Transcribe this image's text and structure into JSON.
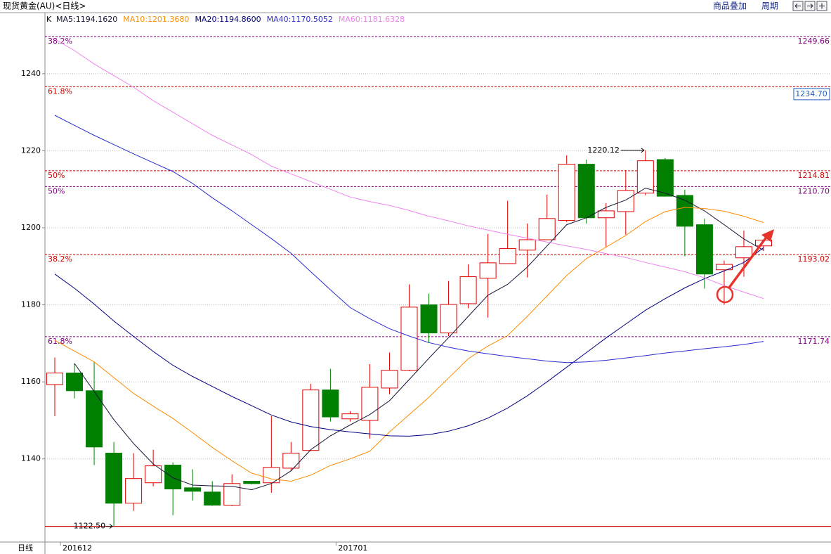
{
  "header": {
    "title": "现货黄金(AU)<日线>",
    "buttons": [
      "商品叠加",
      "周期"
    ]
  },
  "chart_data": {
    "type": "candlestick",
    "legend_prefix": "K",
    "period_label": "日线",
    "categories": [
      null,
      "201612",
      null,
      null,
      null,
      null,
      null,
      null,
      null,
      null,
      null,
      null,
      null,
      null,
      null,
      "201701",
      null,
      null,
      null,
      null,
      null,
      null,
      null,
      null,
      null,
      null,
      null,
      null,
      null,
      null,
      null,
      null,
      null,
      null,
      null,
      null,
      null
    ],
    "candles": {
      "up_color": "#dd0000",
      "down_color": "#007f00",
      "open": [
        1159.3,
        1162.3,
        1157.7,
        1141.5,
        1128.5,
        1133.8,
        1138.4,
        1132.5,
        1131.4,
        1128.0,
        1134.2,
        1133.8,
        1137.6,
        1142.2,
        1157.9,
        1150.4,
        1150.0,
        1158.4,
        1163.0,
        1180.0,
        1172.7,
        1180.3,
        1186.9,
        1190.7,
        1194.2,
        1196.9,
        1201.9,
        1216.5,
        1202.6,
        1204.2,
        1209.0,
        1217.7,
        1208.4,
        1200.8,
        1189.1,
        1192.2,
        1195.3
      ],
      "high": [
        1166.3,
        1164.8,
        1165.2,
        1144.4,
        1141.5,
        1142.4,
        1139.1,
        1137.3,
        1134.2,
        1136.0,
        1134.3,
        1151.1,
        1144.4,
        1159.5,
        1163.4,
        1152.4,
        1164.6,
        1167.6,
        1185.3,
        1182.9,
        1186.2,
        1190.5,
        1198.4,
        1207.0,
        1201.1,
        1208.6,
        1218.8,
        1217.7,
        1206.4,
        1215.0,
        1220.12,
        1218.1,
        1209.9,
        1202.4,
        1191.5,
        1199.3,
        1196.9
      ],
      "low": [
        1151.1,
        1155.7,
        1138.4,
        1122.5,
        1126.5,
        1132.9,
        1125.4,
        1129.2,
        1127.8,
        1127.8,
        1133.4,
        1131.2,
        1136.9,
        1142.0,
        1149.7,
        1149.7,
        1145.3,
        1156.8,
        1162.8,
        1170.1,
        1171.9,
        1179.1,
        1176.7,
        1190.7,
        1187.1,
        1196.9,
        1201.5,
        1201.1,
        1195.1,
        1198.2,
        1208.4,
        1208.1,
        1192.6,
        1184.2,
        1180.0,
        1187.3,
        1194.0
      ],
      "close": [
        1162.3,
        1157.7,
        1143.1,
        1128.5,
        1134.9,
        1138.2,
        1132.2,
        1131.6,
        1128.0,
        1133.6,
        1133.6,
        1137.8,
        1141.5,
        1157.9,
        1150.9,
        1151.7,
        1158.6,
        1163.0,
        1179.4,
        1172.7,
        1180.1,
        1187.3,
        1190.9,
        1194.6,
        1196.9,
        1202.4,
        1216.5,
        1202.6,
        1204.4,
        1209.7,
        1217.4,
        1208.2,
        1200.4,
        1188.0,
        1190.5,
        1195.1,
        1196.8
      ]
    },
    "series": [
      {
        "name": "MA5:1194.1620",
        "color": "#141438",
        "values": [
          null,
          1164.8,
          1157.5,
          1150.2,
          1144.0,
          1138.7,
          1135.1,
          1133.2,
          1133.0,
          1132.9,
          1132.0,
          1133.6,
          1136.9,
          1142.4,
          1146.0,
          1148.8,
          1151.5,
          1155.1,
          1160.6,
          1166.1,
          1171.5,
          1177.0,
          1182.5,
          1185.3,
          1189.8,
          1195.3,
          1200.8,
          1202.6,
          1205.3,
          1207.2,
          1210.3,
          1209.0,
          1207.2,
          1204.4,
          1200.8,
          1197.1,
          1194.16
        ]
      },
      {
        "name": "MA10:1201.3680",
        "color": "#ff8c00",
        "values": [
          1170.8,
          1168.0,
          1165.2,
          1161.1,
          1157.0,
          1153.7,
          1150.5,
          1146.8,
          1143.0,
          1139.5,
          1136.3,
          1134.8,
          1134.2,
          1135.8,
          1138.3,
          1140.0,
          1142.0,
          1147.0,
          1151.5,
          1156.0,
          1161.0,
          1166.0,
          1169.3,
          1172.0,
          1177.0,
          1182.3,
          1187.6,
          1192.0,
          1195.0,
          1198.0,
          1201.6,
          1204.2,
          1205.3,
          1205.0,
          1204.3,
          1203.0,
          1201.37
        ]
      },
      {
        "name": "MA20:1194.8600",
        "color": "#000080",
        "values": [
          1188.0,
          1184.3,
          1180.2,
          1175.8,
          1171.8,
          1167.9,
          1164.3,
          1161.4,
          1158.8,
          1156.2,
          1153.8,
          1151.4,
          1149.6,
          1148.4,
          1147.6,
          1147.0,
          1146.5,
          1146.0,
          1145.9,
          1146.3,
          1147.2,
          1148.6,
          1150.6,
          1153.2,
          1156.4,
          1160.0,
          1163.8,
          1167.6,
          1171.4,
          1175.0,
          1178.6,
          1181.6,
          1184.4,
          1186.8,
          1188.8,
          1191.0,
          1194.86
        ]
      },
      {
        "name": "MA40:1170.5052",
        "color": "#2a2ad0",
        "values": [
          1229.2,
          1226.6,
          1224.0,
          1221.6,
          1219.2,
          1216.9,
          1214.6,
          1211.5,
          1207.8,
          1204.4,
          1200.8,
          1197.2,
          1193.4,
          1188.6,
          1183.9,
          1179.3,
          1176.4,
          1173.8,
          1171.9,
          1170.2,
          1169.0,
          1168.0,
          1167.3,
          1166.6,
          1166.0,
          1165.4,
          1165.0,
          1165.2,
          1165.6,
          1166.2,
          1166.8,
          1167.5,
          1168.0,
          1168.6,
          1169.1,
          1169.7,
          1170.51
        ]
      },
      {
        "name": "MA60:1181.6328",
        "color": "#ee82ee",
        "values": [
          1249.0,
          1246.0,
          1242.5,
          1239.5,
          1236.5,
          1233.0,
          1230.0,
          1227.0,
          1224.0,
          1221.5,
          1219.0,
          1216.0,
          1214.0,
          1212.0,
          1210.0,
          1208.0,
          1206.8,
          1205.8,
          1204.5,
          1203.0,
          1201.8,
          1200.5,
          1199.4,
          1198.3,
          1197.3,
          1196.3,
          1195.3,
          1194.4,
          1193.3,
          1192.3,
          1191.0,
          1189.8,
          1188.6,
          1187.0,
          1185.0,
          1183.3,
          1181.63
        ]
      }
    ],
    "ylim": [
      1118.6,
      1252.2
    ],
    "yticks": [
      1140,
      1160,
      1180,
      1200,
      1220,
      1240
    ],
    "grid": true,
    "levels": [
      {
        "label": "38.2%",
        "value": 1249.66,
        "value_label": "1249.66",
        "color": "#800080"
      },
      {
        "label": "61.8%",
        "value": 1236.6,
        "color": "#cc0000"
      },
      {
        "label": "50%",
        "value": 1214.81,
        "value_label": "1214.81",
        "color": "#cc0000"
      },
      {
        "label": "50%",
        "value": 1210.7,
        "value_label": "1210.70",
        "color": "#800080"
      },
      {
        "label": "38.2%",
        "value": 1193.02,
        "value_label": "1193.02",
        "color": "#cc0000"
      },
      {
        "label": "61.8%",
        "value": 1171.74,
        "value_label": "1171.74",
        "color": "#800080"
      }
    ],
    "price_marker": {
      "value": 1234.7,
      "label": "1234.70",
      "color": "#1e5fbf"
    },
    "high_marker": {
      "value": 1220.12,
      "label": "1220.12"
    },
    "low_marker": {
      "value": 1122.5,
      "label": "1122.50",
      "color": "#cc0000"
    }
  }
}
